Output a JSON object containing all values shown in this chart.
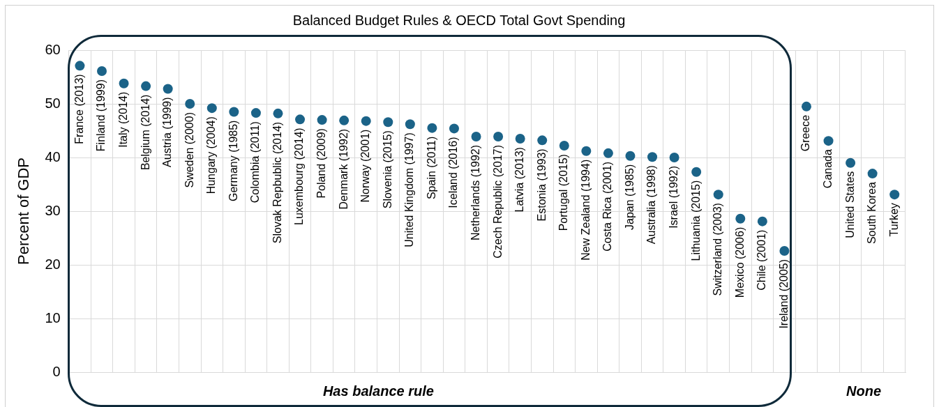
{
  "chart_data": {
    "type": "scatter",
    "title": "Balanced Budget Rules & OECD Total Govt Spending",
    "ylabel": "Percent of GDP",
    "categories": [
      "France (2013)",
      "Finland (1999)",
      "Italy (2014)",
      "Belgium (2014)",
      "Austria (1999)",
      "Sweden (2000)",
      "Hungary (2004)",
      "Germany (1985)",
      "Colombia (2011)",
      "Slovak Repbublic (2014)",
      "Luxembourg (2014)",
      "Poland (2009)",
      "Denmark (1992)",
      "Norway (2001)",
      "Slovenia (2015)",
      "United Kingdom (1997)",
      "Spain (2011)",
      "Iceland (2016)",
      "Netherlands (1992)",
      "Czech Republic (2017)",
      "Latvia (2013)",
      "Estonia (1993)",
      "Portugal (2015)",
      "New Zealand (1994)",
      "Costa Rica (2001)",
      "Japan (1985)",
      "Australia (1998)",
      "Israel (1992)",
      "Lithuania (2015)",
      "Switzerland (2003)",
      "Mexico (2006)",
      "Chile (2001)",
      "Ireland (2005)",
      "Greece",
      "Canada",
      "United States",
      "South Korea",
      "Turkey"
    ],
    "series": [
      {
        "color": "#1b6388",
        "values": [
          57.1,
          56.1,
          53.8,
          53.3,
          52.8,
          50.0,
          49.2,
          48.5,
          48.3,
          48.2,
          47.1,
          47.0,
          46.9,
          46.8,
          46.6,
          46.2,
          45.5,
          45.4,
          43.9,
          43.9,
          43.5,
          43.2,
          42.2,
          41.2,
          40.8,
          40.3,
          40.1,
          40.0,
          37.3,
          33.1,
          28.6,
          28.1,
          22.6,
          49.5,
          43.1,
          39.0,
          37.0,
          33.1
        ]
      }
    ],
    "ylim": [
      0,
      60
    ],
    "yticks": [
      0,
      10,
      20,
      30,
      40,
      50,
      60
    ],
    "grid": true,
    "marker": "circle",
    "tick_labels": "y",
    "annotations": [
      "Has balance rule",
      "None"
    ]
  }
}
